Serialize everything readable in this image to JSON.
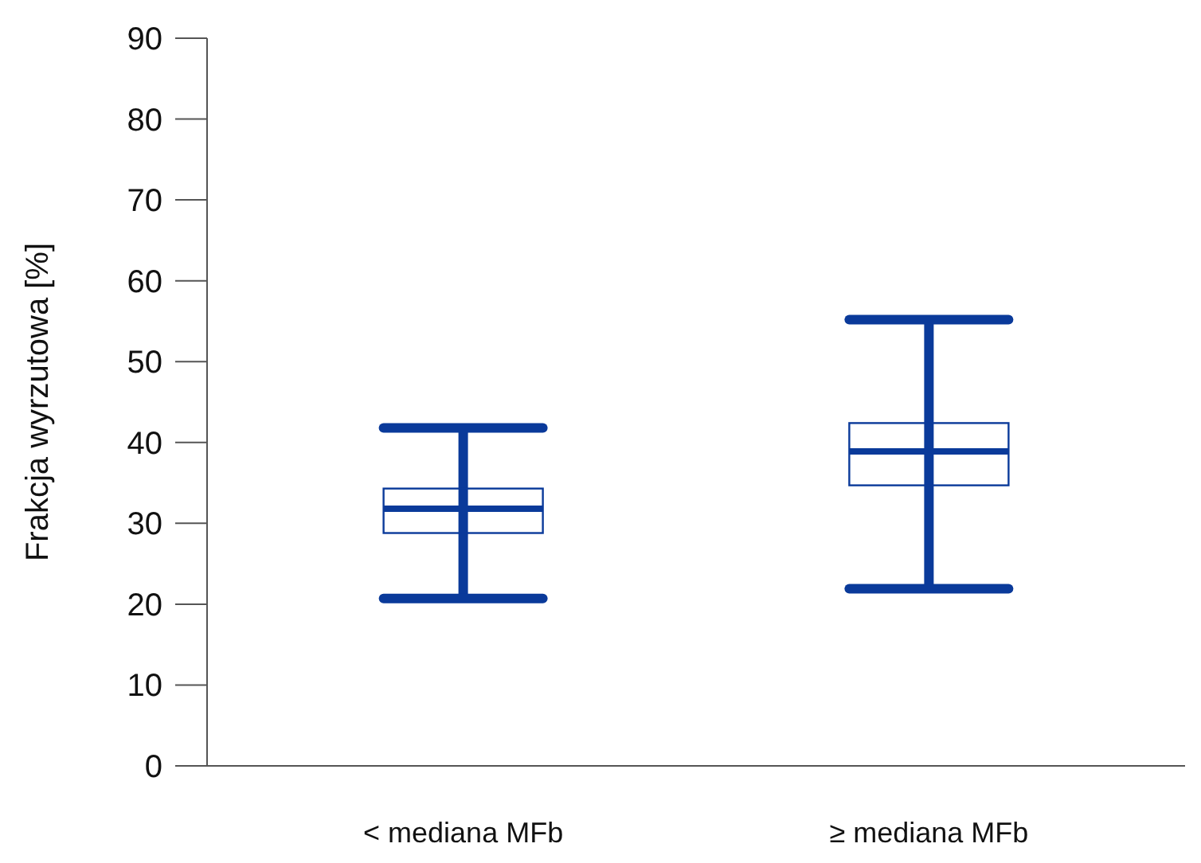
{
  "chart_data": {
    "type": "box",
    "ylabel": "Frakcja wyrzutowa [%]",
    "categories": [
      "< mediana MFb",
      "≥ mediana MFb"
    ],
    "series": [
      {
        "color": "#0a3a9a",
        "boxes": [
          {
            "low": 20.7,
            "q1": 28.8,
            "median": 31.8,
            "q3": 34.3,
            "high": 41.8
          },
          {
            "low": 21.9,
            "q1": 34.7,
            "median": 38.9,
            "q3": 42.4,
            "high": 55.2
          }
        ]
      }
    ],
    "ylim": [
      0,
      90
    ],
    "yticks": [
      0,
      10,
      20,
      30,
      40,
      50,
      60,
      70,
      80,
      90
    ],
    "grid": false
  }
}
